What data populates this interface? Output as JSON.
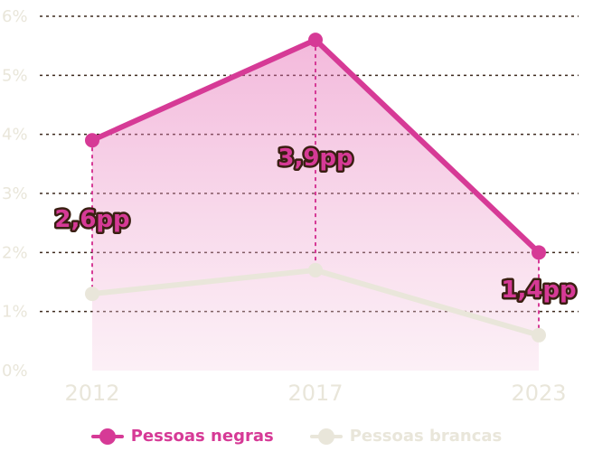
{
  "chart_data": {
    "type": "line",
    "x": [
      "2012",
      "2017",
      "2023"
    ],
    "series": [
      {
        "name": "Pessoas negras",
        "values": [
          3.9,
          5.6,
          2.0
        ],
        "color": "#d63a96"
      },
      {
        "name": "Pessoas brancas",
        "values": [
          1.3,
          1.7,
          0.6
        ],
        "color": "#e9e6da"
      }
    ],
    "y_ticks": [
      "0%",
      "1%",
      "2%",
      "3%",
      "4%",
      "5%",
      "6%"
    ],
    "ylim": [
      0,
      6
    ],
    "annotations": [
      "2,6pp",
      "3,9pp",
      "1,4pp"
    ],
    "grid": "horizontal dotted",
    "legend_position": "bottom"
  }
}
